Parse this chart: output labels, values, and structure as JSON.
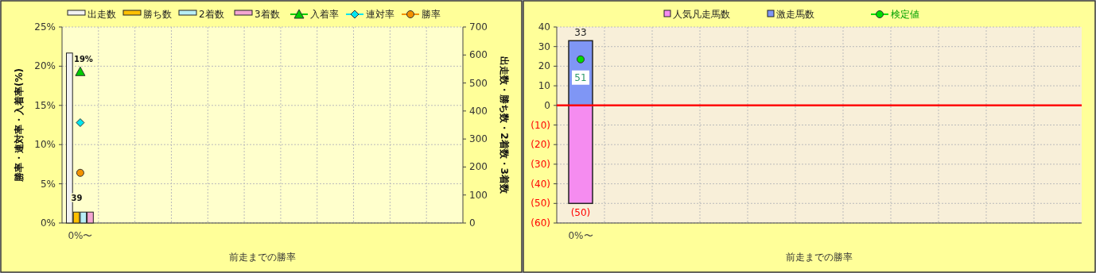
{
  "chart_data": [
    {
      "type": "bar",
      "xlabel": "前走までの勝率",
      "ylabel": "勝率・連対率・入着率(%)",
      "y2label": "出走数・勝ち数・2着数・3着数",
      "categories": [
        "0%〜",
        null,
        null,
        null,
        null,
        null,
        null,
        null,
        null,
        null,
        null
      ],
      "series": [
        {
          "name": "出走数",
          "axis": "y2",
          "color": "#f2f2f2",
          "values": [
            607,
            null,
            null,
            null,
            null,
            null,
            null,
            null,
            null,
            null,
            null
          ]
        },
        {
          "name": "勝ち数",
          "axis": "y2",
          "color": "#ffc000",
          "values": [
            39,
            null,
            null,
            null,
            null,
            null,
            null,
            null,
            null,
            null,
            null
          ],
          "value_labels": [
            "39",
            null,
            null,
            null,
            null,
            null,
            null,
            null,
            null,
            null,
            null
          ]
        },
        {
          "name": "2着数",
          "axis": "y2",
          "color": "#b7eef5",
          "values": [
            39,
            null,
            null,
            null,
            null,
            null,
            null,
            null,
            null,
            null,
            null
          ]
        },
        {
          "name": "3着数",
          "axis": "y2",
          "color": "#f4a6d2",
          "values": [
            39,
            null,
            null,
            null,
            null,
            null,
            null,
            null,
            null,
            null,
            null
          ]
        },
        {
          "name": "入着率",
          "type": "line",
          "color": "#00cc00",
          "marker": "triangle",
          "values": [
            19.3,
            null,
            null,
            null,
            null,
            null,
            null,
            null,
            null,
            null,
            null
          ],
          "value_labels": [
            "19%",
            null,
            null,
            null,
            null,
            null,
            null,
            null,
            null,
            null,
            null
          ]
        },
        {
          "name": "連対率",
          "type": "line",
          "color": "#00e5ee",
          "marker": "diamond",
          "values": [
            12.8,
            null,
            null,
            null,
            null,
            null,
            null,
            null,
            null,
            null,
            null
          ]
        },
        {
          "name": "勝率",
          "type": "line",
          "color": "#f39200",
          "marker": "circle",
          "values": [
            6.4,
            null,
            null,
            null,
            null,
            null,
            null,
            null,
            null,
            null,
            null
          ]
        }
      ],
      "ylim": [
        0,
        25
      ],
      "yticks": [
        {
          "value": 0,
          "label": "0%"
        },
        {
          "value": 5,
          "label": "5%"
        },
        {
          "value": 10,
          "label": "10%"
        },
        {
          "value": 15,
          "label": "15%"
        },
        {
          "value": 20,
          "label": "20%"
        },
        {
          "value": 25,
          "label": "25%"
        }
      ],
      "y2lim": [
        0,
        700
      ],
      "y2ticks": [
        0,
        100,
        200,
        300,
        400,
        500,
        600,
        700
      ],
      "grid": true,
      "legend": "top"
    },
    {
      "type": "bar",
      "xlabel": "前走までの勝率",
      "stacked": true,
      "categories": [
        "0%〜",
        null,
        null,
        null,
        null,
        null,
        null,
        null,
        null,
        null,
        null
      ],
      "series": [
        {
          "name": "人気凡走馬数",
          "color": "#f58cf0",
          "values": [
            -50,
            null,
            null,
            null,
            null,
            null,
            null,
            null,
            null,
            null,
            null
          ],
          "value_labels": [
            "(50)",
            null,
            null,
            null,
            null,
            null,
            null,
            null,
            null,
            null,
            null
          ]
        },
        {
          "name": "激走馬数",
          "color": "#7f96f5",
          "values": [
            33,
            null,
            null,
            null,
            null,
            null,
            null,
            null,
            null,
            null,
            null
          ],
          "value_labels": [
            "33",
            null,
            null,
            null,
            null,
            null,
            null,
            null,
            null,
            null,
            null
          ]
        },
        {
          "name": "検定値",
          "type": "line",
          "color": "#00dd00",
          "marker": "circle",
          "values": [
            23.5,
            null,
            null,
            null,
            null,
            null,
            null,
            null,
            null,
            null,
            null
          ]
        }
      ],
      "annotations": [
        {
          "text": "51",
          "x": "0%〜",
          "y": 23.5
        }
      ],
      "ylim": [
        -60,
        40
      ],
      "yticks": [
        {
          "value": -60,
          "label": "(60)"
        },
        {
          "value": -50,
          "label": "(50)"
        },
        {
          "value": -40,
          "label": "(40)"
        },
        {
          "value": -30,
          "label": "(30)"
        },
        {
          "value": -20,
          "label": "(20)"
        },
        {
          "value": -10,
          "label": "(10)"
        },
        0,
        10,
        20,
        30,
        40
      ],
      "ref_lines": [
        {
          "axis": "y",
          "value": 0,
          "color": "#ff0000"
        }
      ],
      "grid": true,
      "legend": "top"
    }
  ]
}
